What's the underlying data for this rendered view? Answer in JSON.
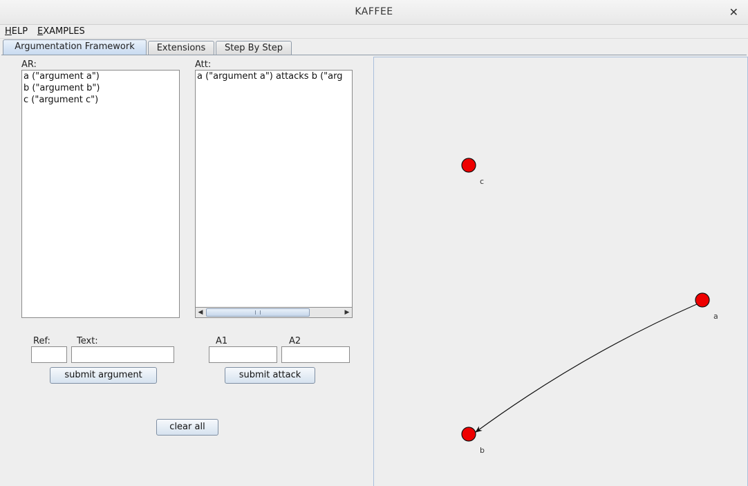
{
  "window": {
    "title": "KAFFEE"
  },
  "menu": [
    {
      "mnemonic": "H",
      "rest": "ELP"
    },
    {
      "mnemonic": "E",
      "rest": "XAMPLES"
    }
  ],
  "tabs": [
    {
      "label": "Argumentation Framework",
      "active": true
    },
    {
      "label": "Extensions",
      "active": false
    },
    {
      "label": "Step By Step",
      "active": false
    }
  ],
  "arguments_panel": {
    "label": "AR:",
    "items": [
      "a (\"argument a\")",
      "b (\"argument b\")",
      "c (\"argument c\")"
    ]
  },
  "attacks_panel": {
    "label": "Att:",
    "items": [
      "a (\"argument a\") attacks b (\"arg"
    ]
  },
  "argument_form": {
    "ref_label": "Ref:",
    "text_label": "Text:",
    "ref_value": "",
    "text_value": "",
    "submit_label": "submit argument"
  },
  "attack_form": {
    "a1_label": "A1",
    "a2_label": "A2",
    "a1_value": "",
    "a2_value": "",
    "submit_label": "submit attack"
  },
  "clear_label": "clear all",
  "graph": {
    "node_color": "#ee0000",
    "nodes": [
      {
        "id": "c",
        "label": "c"
      },
      {
        "id": "a",
        "label": "a"
      },
      {
        "id": "b",
        "label": "b"
      }
    ],
    "edges": [
      {
        "from": "a",
        "to": "b"
      }
    ]
  }
}
